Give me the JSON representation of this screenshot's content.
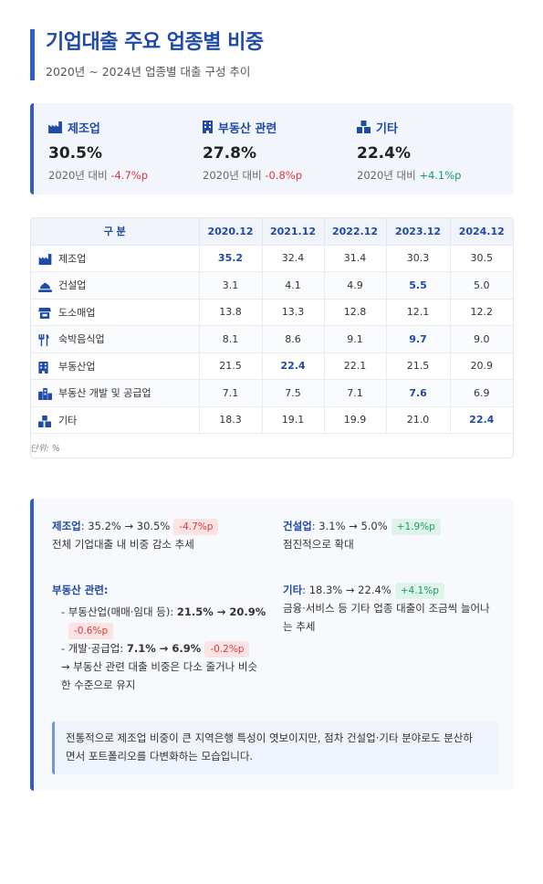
{
  "header": {
    "title": "기업대출 주요 업종별 비중",
    "subtitle": "2020년 ~ 2024년 업종별 대출 구성 추이"
  },
  "summary": [
    {
      "icon": "factory-icon",
      "label": "제조업",
      "value": "30.5%",
      "compare_prefix": "2020년 대비 ",
      "change": "-4.7%p",
      "trend": "negative"
    },
    {
      "icon": "building-icon",
      "label": "부동산 관련",
      "value": "27.8%",
      "compare_prefix": "2020년 대비 ",
      "change": "-0.8%p",
      "trend": "negative"
    },
    {
      "icon": "shapes-icon",
      "label": "기타",
      "value": "22.4%",
      "compare_prefix": "2020년 대비 ",
      "change": "+4.1%p",
      "trend": "positive"
    }
  ],
  "table": {
    "headers": [
      "구 분",
      "2020.12",
      "2021.12",
      "2022.12",
      "2023.12",
      "2024.12"
    ],
    "rows": [
      {
        "icon": "factory-icon",
        "label": "제조업",
        "values": [
          "35.2",
          "32.4",
          "31.4",
          "30.3",
          "30.5"
        ],
        "highlight": 0
      },
      {
        "icon": "hard-hat-icon",
        "label": "건설업",
        "values": [
          "3.1",
          "4.1",
          "4.9",
          "5.5",
          "5.0"
        ],
        "highlight": 3
      },
      {
        "icon": "store-icon",
        "label": "도소매업",
        "values": [
          "13.8",
          "13.3",
          "12.8",
          "12.1",
          "12.2"
        ],
        "highlight": -1
      },
      {
        "icon": "utensils-icon",
        "label": "숙박음식업",
        "values": [
          "8.1",
          "8.6",
          "9.1",
          "9.7",
          "9.0"
        ],
        "highlight": 3
      },
      {
        "icon": "building-icon",
        "label": "부동산업",
        "values": [
          "21.5",
          "22.4",
          "22.1",
          "21.5",
          "20.9"
        ],
        "highlight": 1
      },
      {
        "icon": "city-icon",
        "label": "부동산 개발 및 공급업",
        "values": [
          "7.1",
          "7.5",
          "7.1",
          "7.6",
          "6.9"
        ],
        "highlight": 3
      },
      {
        "icon": "shapes-icon",
        "label": "기타",
        "values": [
          "18.3",
          "19.1",
          "19.9",
          "21.0",
          "22.4"
        ],
        "highlight": 4
      }
    ],
    "unit": "단위: %"
  },
  "analysis": {
    "manufacturing": {
      "label": "제조업",
      "range": ": 35.2% → 30.5%",
      "chip": "-4.7%p",
      "desc": "전체 기업대출 내 비중 감소 추세"
    },
    "construction": {
      "label": "건설업",
      "range": ": 3.1% → 5.0%",
      "chip": "+1.9%p",
      "desc": "점진적으로 확대"
    },
    "real_estate": {
      "label": "부동산 관련:",
      "line1_prefix": "- 부동산업(매매·임대 등): ",
      "line1_value": "21.5% → 20.9%",
      "line1_chip": "-0.6%p",
      "line2_prefix": "- 개발·공급업: ",
      "line2_value": "7.1% → 6.9%",
      "line2_chip": "-0.2%p",
      "line3a": "→ 부동산 관련 대출 비중은 다소 줄거나 비슷",
      "line3b": "한 수준으로 유지"
    },
    "others": {
      "label": "기타",
      "range": ": 18.3% → 22.4%",
      "chip": "+4.1%p",
      "desc_a": "금융·서비스 등 기타 업종 대출이 조금씩 늘어나",
      "desc_b": "는 추세"
    },
    "note_a": "전통적으로 제조업 비중이 큰 지역은행 특성이 엿보이지만, 점차 건설업·기타 분야로도 분산하",
    "note_b": "면서 포트폴리오를 다변화하는 모습입니다."
  },
  "colors": {
    "accent": "#2f5fc4",
    "negative": "#d93a3a",
    "positive": "#1a9a6a"
  }
}
